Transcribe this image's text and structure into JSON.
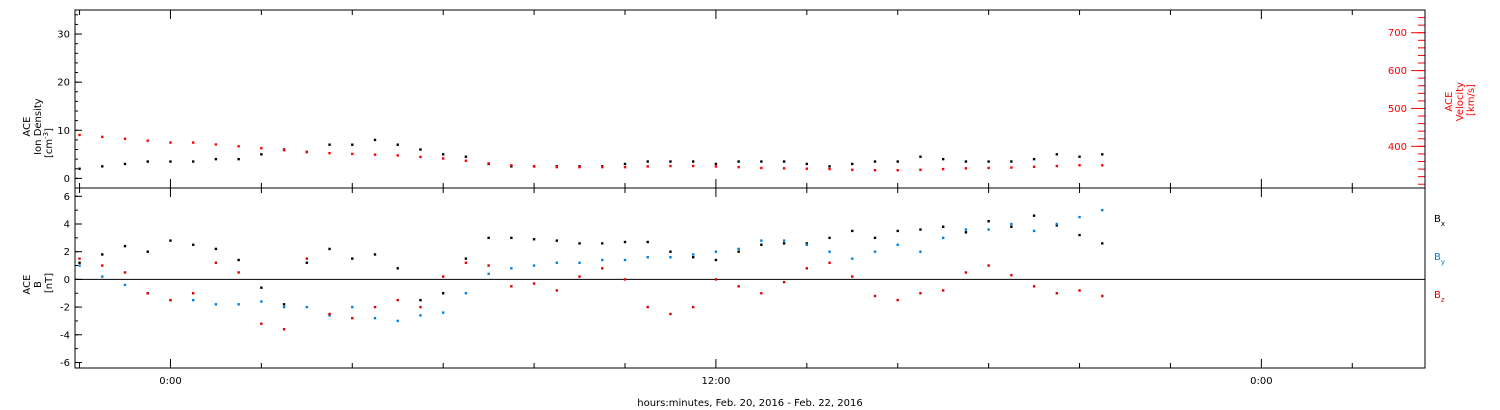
{
  "chart_data": [
    {
      "type": "scatter",
      "title": "",
      "xlabel": "hours:minutes, Feb. 20, 2016 - Feb. 22, 2016",
      "xlim": [
        -2.1,
        27.6
      ],
      "x_ticks": [
        {
          "x": 0,
          "label": "0:00"
        },
        {
          "x": 12,
          "label": "12:00"
        },
        {
          "x": 24,
          "label": "0:00"
        }
      ],
      "ylabel": "ACE Ion Density [cm^-3]",
      "ylabel_lines": [
        "ACE",
        "Ion Density",
        "[cm",
        "-3",
        "]"
      ],
      "ylim": [
        -2,
        35
      ],
      "yticks": [
        0,
        10,
        20,
        30
      ],
      "y2label": "ACE Velocity [km/s]",
      "y2label_lines": [
        "ACE",
        "Velocity",
        "[km/s]"
      ],
      "y2lim": [
        290,
        760
      ],
      "y2ticks": [
        400,
        500,
        600,
        700
      ],
      "y2_color": "#ff0000",
      "series": [
        {
          "name": "",
          "axis": "left",
          "color": "#000000",
          "x": [
            -2.0,
            -1.5,
            -1.0,
            -0.5,
            0.0,
            0.5,
            1.0,
            1.5,
            2.0,
            2.5,
            3.0,
            3.5,
            4.0,
            4.5,
            5.0,
            5.5,
            6.0,
            6.5,
            7.0,
            7.5,
            8.0,
            8.5,
            9.0,
            9.5,
            10.0,
            10.5,
            11.0,
            11.5,
            12.0,
            12.5,
            13.0,
            13.5,
            14.0,
            14.5,
            15.0,
            15.5,
            16.0,
            16.5,
            17.0,
            17.5,
            18.0,
            18.5,
            19.0,
            19.5,
            20.0,
            20.5
          ],
          "y": [
            2,
            2.5,
            3,
            3.5,
            3.5,
            3.5,
            4,
            4,
            5,
            6,
            5.5,
            7,
            7,
            8,
            7,
            6,
            5,
            4.5,
            3,
            2.5,
            2.5,
            2.5,
            2.5,
            2.5,
            3,
            3.5,
            3.5,
            3.5,
            3,
            3.5,
            3.5,
            3.5,
            3,
            2.5,
            3,
            3.5,
            3.5,
            4.5,
            4,
            3.5,
            3.5,
            3.5,
            4,
            5,
            4.5,
            5
          ]
        },
        {
          "name": "",
          "axis": "right",
          "color": "#ff0000",
          "x": [
            -2.0,
            -1.5,
            -1.0,
            -0.5,
            0.0,
            0.5,
            1.0,
            1.5,
            2.0,
            2.5,
            3.0,
            3.5,
            4.0,
            4.5,
            5.0,
            5.5,
            6.0,
            6.5,
            7.0,
            7.5,
            8.0,
            8.5,
            9.0,
            9.5,
            10.0,
            10.5,
            11.0,
            11.5,
            12.0,
            12.5,
            13.0,
            13.5,
            14.0,
            14.5,
            15.0,
            15.5,
            16.0,
            16.5,
            17.0,
            17.5,
            18.0,
            18.5,
            19.0,
            19.5,
            20.0,
            20.5
          ],
          "y": [
            430,
            425,
            420,
            415,
            410,
            410,
            405,
            400,
            395,
            390,
            385,
            382,
            380,
            378,
            376,
            372,
            368,
            362,
            355,
            350,
            347,
            345,
            345,
            345,
            345,
            347,
            348,
            348,
            347,
            345,
            343,
            342,
            341,
            340,
            338,
            337,
            337,
            338,
            340,
            342,
            343,
            344,
            346,
            348,
            350,
            350
          ]
        }
      ]
    },
    {
      "type": "scatter",
      "title": "",
      "xlim": [
        -2.1,
        27.6
      ],
      "ylabel": "ACE B [nT]",
      "ylabel_lines": [
        "ACE",
        "B",
        "[nT]"
      ],
      "ylim": [
        -6.4,
        6.6
      ],
      "yticks": [
        -6,
        -4,
        -2,
        0,
        2,
        4,
        6
      ],
      "zero_line": true,
      "series": [
        {
          "name": "Bx",
          "color": "#000000",
          "x": [
            -2.0,
            -1.5,
            -1.0,
            -0.5,
            0.0,
            0.5,
            1.0,
            1.5,
            2.0,
            2.5,
            3.0,
            3.5,
            4.0,
            4.5,
            5.0,
            5.5,
            6.0,
            6.5,
            7.0,
            7.5,
            8.0,
            8.5,
            9.0,
            9.5,
            10.0,
            10.5,
            11.0,
            11.5,
            12.0,
            12.5,
            13.0,
            13.5,
            14.0,
            14.5,
            15.0,
            15.5,
            16.0,
            16.5,
            17.0,
            17.5,
            18.0,
            18.5,
            19.0,
            19.5,
            20.0,
            20.5
          ],
          "y": [
            1.2,
            1.8,
            2.4,
            2.0,
            2.8,
            2.5,
            2.2,
            1.4,
            -0.6,
            -1.8,
            1.2,
            2.2,
            1.5,
            1.8,
            0.8,
            -1.5,
            -1.0,
            1.5,
            3.0,
            3.0,
            2.9,
            2.8,
            2.6,
            2.6,
            2.7,
            2.7,
            2.0,
            1.6,
            1.4,
            2.0,
            2.5,
            2.6,
            2.6,
            3.0,
            3.5,
            3.0,
            3.5,
            3.6,
            3.8,
            3.4,
            4.2,
            3.8,
            4.6,
            3.9,
            3.2,
            2.6
          ]
        },
        {
          "name": "By",
          "color": "#0080e0",
          "x": [
            -2.0,
            -1.5,
            -1.0,
            -0.5,
            0.0,
            0.5,
            1.0,
            1.5,
            2.0,
            2.5,
            3.0,
            3.5,
            4.0,
            4.5,
            5.0,
            5.5,
            6.0,
            6.5,
            7.0,
            7.5,
            8.0,
            8.5,
            9.0,
            9.5,
            10.0,
            10.5,
            11.0,
            11.5,
            12.0,
            12.5,
            13.0,
            13.5,
            14.0,
            14.5,
            15.0,
            15.5,
            16.0,
            16.5,
            17.0,
            17.5,
            18.0,
            18.5,
            19.0,
            19.5,
            20.0,
            20.5
          ],
          "y": [
            1.0,
            0.2,
            -0.4,
            -1.0,
            -1.5,
            -1.5,
            -1.8,
            -1.8,
            -1.6,
            -2.0,
            -2.0,
            -2.6,
            -2.0,
            -2.8,
            -3.0,
            -2.6,
            -2.4,
            -1.0,
            0.4,
            0.8,
            1.0,
            1.2,
            1.2,
            1.4,
            1.4,
            1.6,
            1.6,
            1.8,
            2.0,
            2.2,
            2.8,
            2.8,
            2.5,
            2.0,
            1.5,
            2.0,
            2.5,
            2.0,
            3.0,
            3.6,
            3.6,
            4.0,
            3.5,
            4.0,
            4.5,
            5.0
          ]
        },
        {
          "name": "Bz",
          "color": "#e00000",
          "x": [
            -2.0,
            -1.5,
            -1.0,
            -0.5,
            0.0,
            0.5,
            1.0,
            1.5,
            2.0,
            2.5,
            3.0,
            3.5,
            4.0,
            4.5,
            5.0,
            5.5,
            6.0,
            6.5,
            7.0,
            7.5,
            8.0,
            8.5,
            9.0,
            9.5,
            10.0,
            10.5,
            11.0,
            11.5,
            12.0,
            12.5,
            13.0,
            13.5,
            14.0,
            14.5,
            15.0,
            15.5,
            16.0,
            16.5,
            17.0,
            17.5,
            18.0,
            18.5,
            19.0,
            19.5,
            20.0,
            20.5
          ],
          "y": [
            1.5,
            1.0,
            0.5,
            -1.0,
            -1.5,
            -1.0,
            1.2,
            0.5,
            -3.2,
            -3.6,
            1.5,
            -2.5,
            -2.8,
            -2.0,
            -1.5,
            -2.0,
            0.2,
            1.2,
            1.0,
            -0.5,
            -0.3,
            -0.8,
            0.2,
            0.8,
            0.0,
            -2.0,
            -2.5,
            -2.0,
            0.0,
            -0.5,
            -1.0,
            -0.2,
            0.8,
            1.2,
            0.2,
            -1.2,
            -1.5,
            -1.0,
            -0.8,
            0.5,
            1.0,
            0.3,
            -0.5,
            -1.0,
            -0.8,
            -1.2
          ]
        }
      ]
    }
  ]
}
